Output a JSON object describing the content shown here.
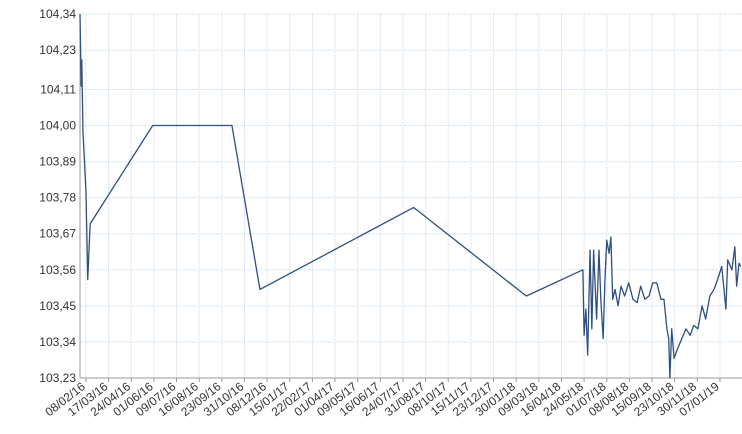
{
  "chart_data": {
    "type": "line",
    "x": [
      "29/01/16",
      "31/01/16",
      "01/02/16",
      "03/02/16",
      "08/02/16",
      "11/02/16",
      "15/02/16",
      "30/05/16",
      "10/10/16",
      "26/11/16",
      "11/08/17",
      "16/02/18",
      "22/05/18",
      "24/05/18",
      "27/05/18",
      "30/05/18",
      "03/06/18",
      "06/06/18",
      "09/06/18",
      "14/06/18",
      "18/06/18",
      "21/06/18",
      "25/06/18",
      "28/06/18",
      "01/07/18",
      "05/07/18",
      "08/07/18",
      "11/07/18",
      "15/07/18",
      "20/07/18",
      "25/07/18",
      "31/07/18",
      "07/08/18",
      "14/08/18",
      "21/08/18",
      "27/08/18",
      "03/09/18",
      "10/09/18",
      "16/09/18",
      "23/09/18",
      "30/09/18",
      "05/10/18",
      "10/10/18",
      "13/10/18",
      "15/10/18",
      "18/10/18",
      "22/10/18",
      "28/10/18",
      "04/11/18",
      "11/11/18",
      "18/11/18",
      "24/11/18",
      "01/12/18",
      "08/12/18",
      "14/12/18",
      "21/12/18",
      "28/12/18",
      "03/01/19",
      "10/01/19",
      "17/01/19",
      "20/01/19",
      "27/01/19",
      "01/02/19",
      "04/02/19",
      "08/02/19",
      "11/02/19"
    ],
    "series": [
      {
        "color": "#2f4f7f",
        "values": [
          104.34,
          104.12,
          104.2,
          103.98,
          103.8,
          103.53,
          103.7,
          104.0,
          104.0,
          103.5,
          103.75,
          103.48,
          103.56,
          103.36,
          103.44,
          103.3,
          103.62,
          103.38,
          103.62,
          103.41,
          103.62,
          103.47,
          103.35,
          103.53,
          103.65,
          103.61,
          103.66,
          103.47,
          103.5,
          103.45,
          103.51,
          103.48,
          103.52,
          103.47,
          103.46,
          103.51,
          103.47,
          103.48,
          103.52,
          103.52,
          103.47,
          103.47,
          103.38,
          103.35,
          103.23,
          103.38,
          103.29,
          103.32,
          103.35,
          103.38,
          103.36,
          103.39,
          103.38,
          103.45,
          103.41,
          103.48,
          103.5,
          103.53,
          103.57,
          103.44,
          103.59,
          103.56,
          103.63,
          103.51,
          103.58,
          103.57
        ]
      }
    ],
    "xlim": [
      "29/01/16",
      "13/02/19"
    ],
    "xticks": [
      "08/02/16",
      "17/03/16",
      "24/04/16",
      "01/06/16",
      "09/07/16",
      "16/08/16",
      "23/09/16",
      "31/10/16",
      "08/12/16",
      "15/01/17",
      "22/02/17",
      "01/04/17",
      "09/05/17",
      "16/06/17",
      "24/07/17",
      "31/08/17",
      "08/10/17",
      "15/11/17",
      "23/12/17",
      "30/01/18",
      "09/03/18",
      "16/04/18",
      "24/05/18",
      "01/07/18",
      "08/08/18",
      "15/09/18",
      "23/10/18",
      "30/11/18",
      "07/01/19"
    ],
    "ylim": [
      103.23,
      104.34
    ],
    "yticks": [
      {
        "value": 103.23,
        "label": "103,23"
      },
      {
        "value": 103.34,
        "label": "103,34"
      },
      {
        "value": 103.45,
        "label": "103,45"
      },
      {
        "value": 103.56,
        "label": "103,56"
      },
      {
        "value": 103.67,
        "label": "103,67"
      },
      {
        "value": 103.78,
        "label": "103,78"
      },
      {
        "value": 103.89,
        "label": "103,89"
      },
      {
        "value": 104.0,
        "label": "104,00"
      },
      {
        "value": 104.11,
        "label": "104,11"
      },
      {
        "value": 104.23,
        "label": "104,23"
      },
      {
        "value": 104.34,
        "label": "104,34"
      }
    ],
    "grid": true
  }
}
